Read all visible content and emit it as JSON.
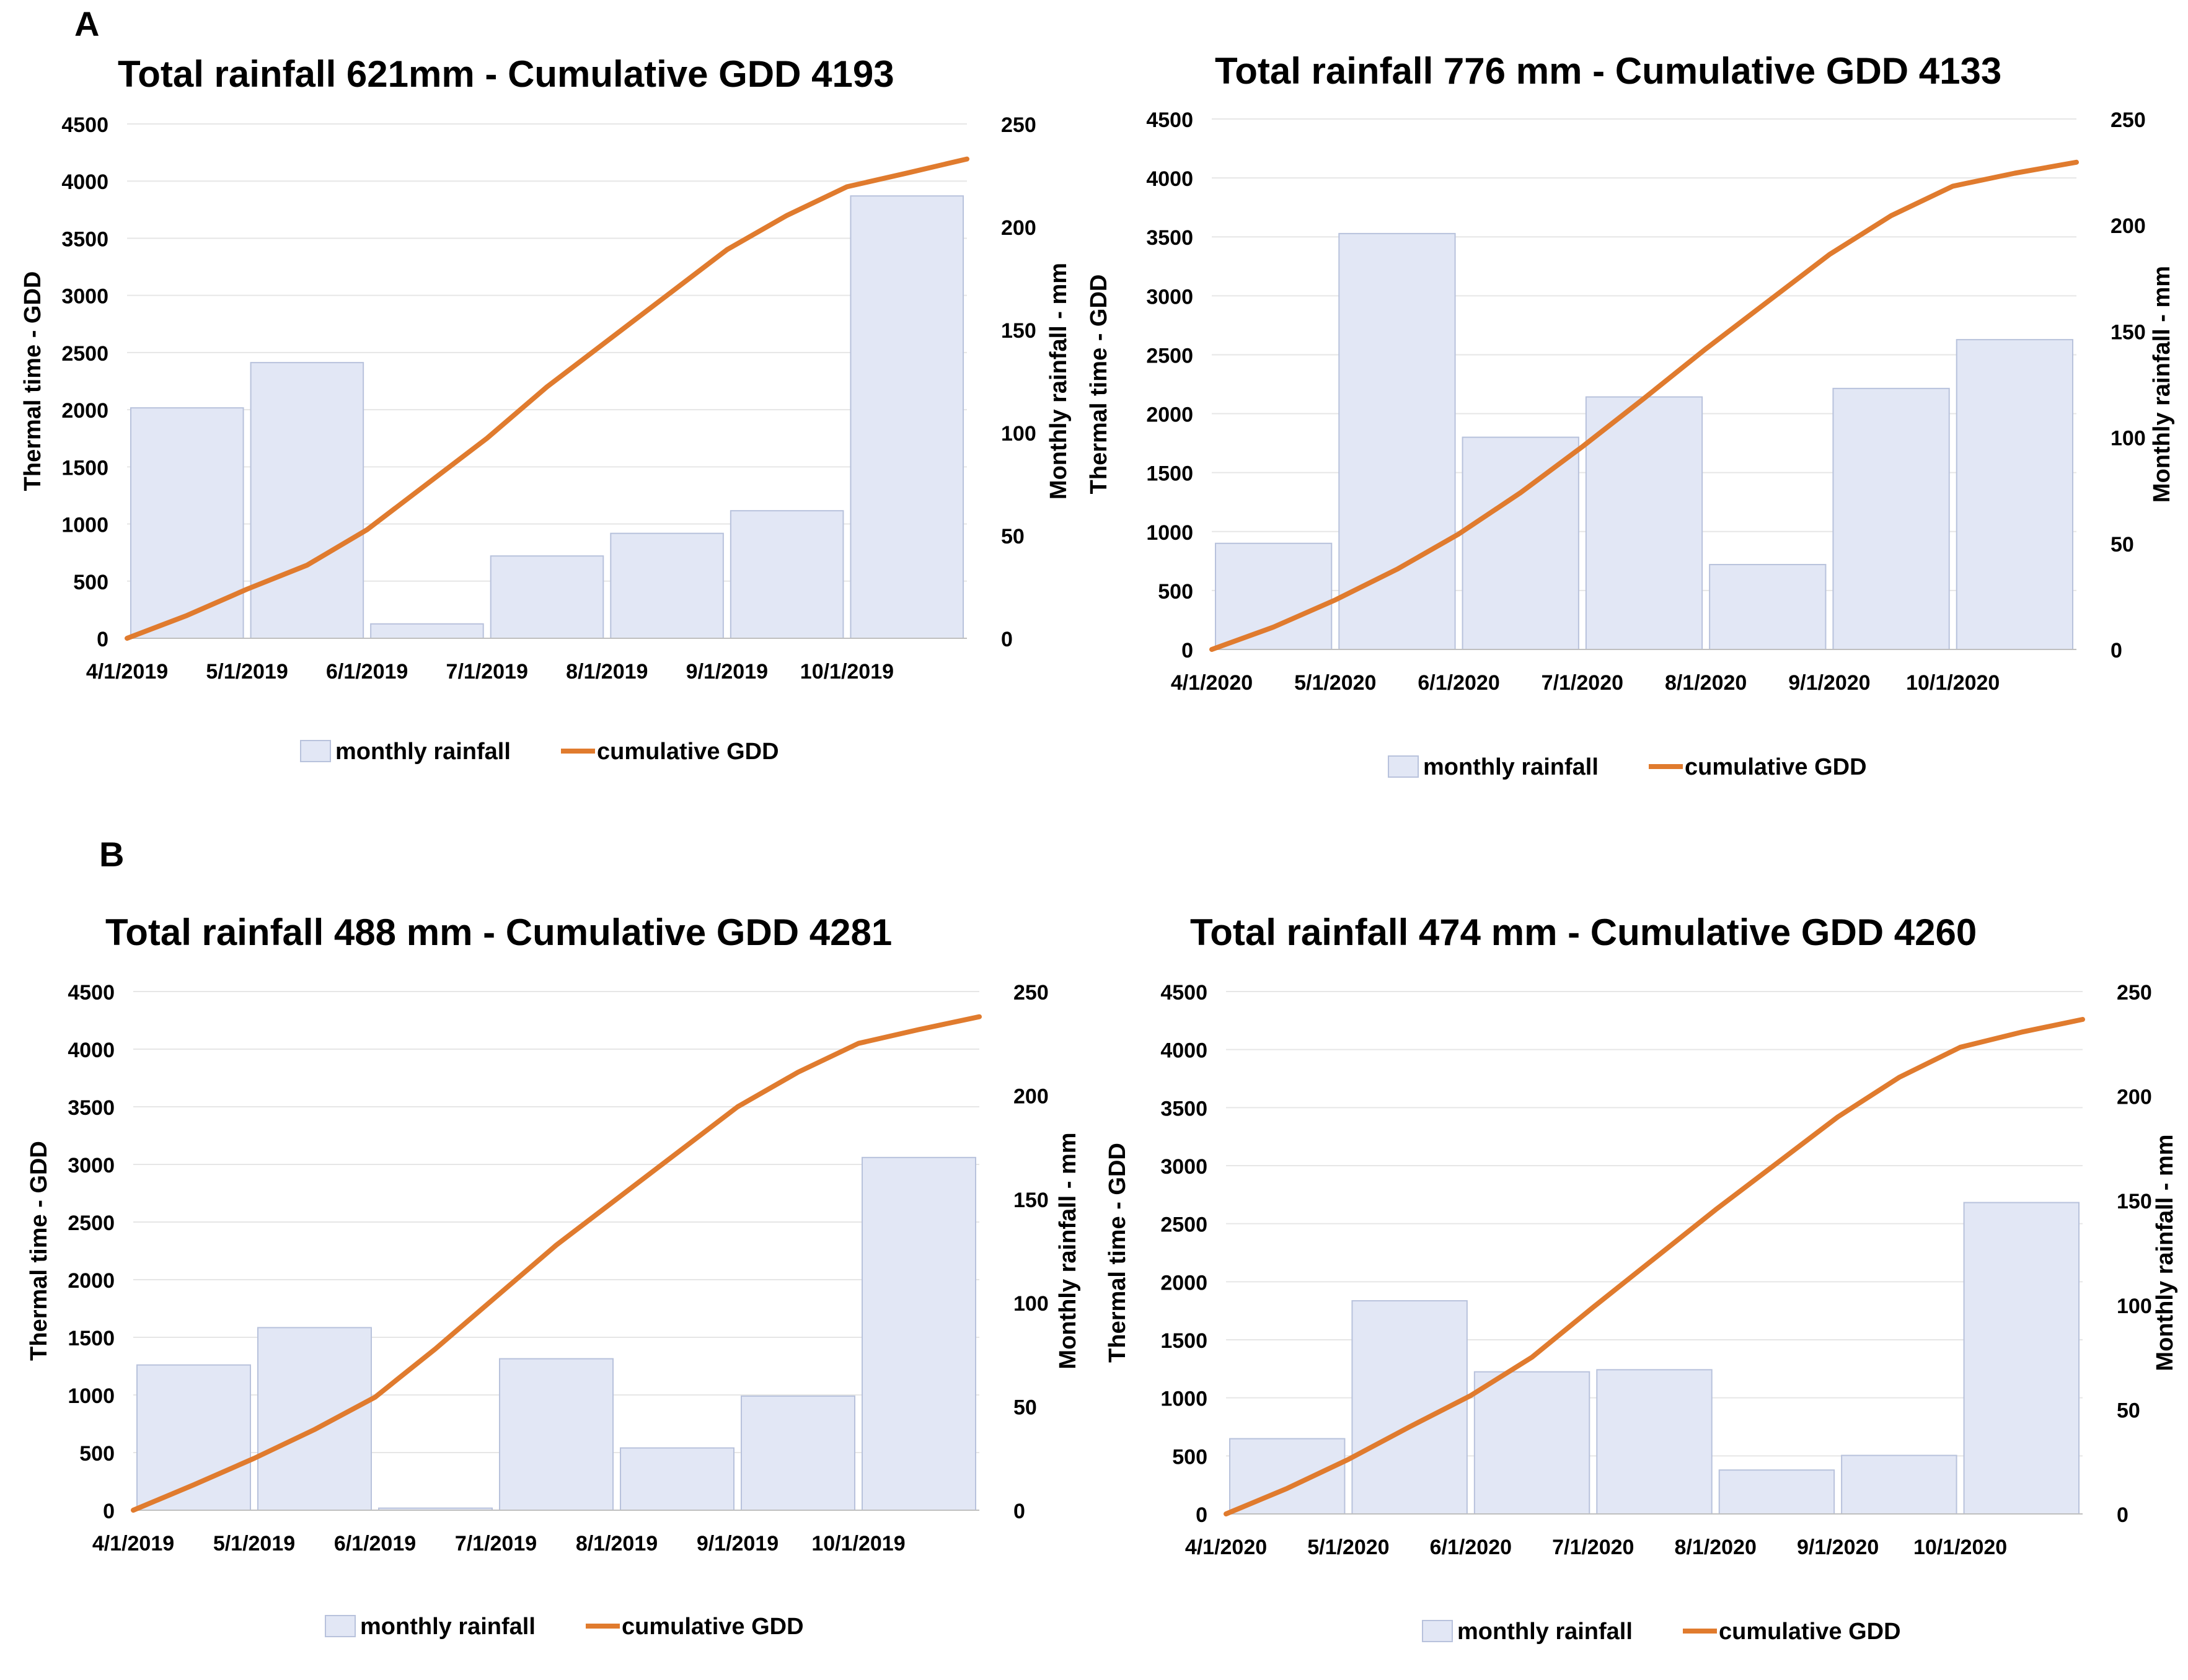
{
  "panels": [
    {
      "label": "A"
    },
    {
      "label": "B"
    }
  ],
  "legend": {
    "rainfall": "monthly rainfall",
    "gdd": "cumulative GDD"
  },
  "colors": {
    "bar_fill": "#e2e7f5",
    "bar_stroke": "#b8c2dc",
    "line": "#e07b2e",
    "text": "#000000",
    "grid": "#e6e6e6"
  },
  "chart_data": [
    {
      "type": "bar+line",
      "title": "Total rainfall 621mm - Cumulative GDD 4193",
      "ylabel": "Thermal time - GDD",
      "y2label": "Monthly rainfall - mm",
      "ylim": [
        0,
        4500
      ],
      "y2lim": [
        0,
        250
      ],
      "yticks": [
        "0",
        "500",
        "1000",
        "1500",
        "2000",
        "2500",
        "3000",
        "3500",
        "4000",
        "4500"
      ],
      "y2ticks": [
        "0",
        "50",
        "100",
        "150",
        "200",
        "250"
      ],
      "categories": [
        "4/1/2019",
        "5/1/2019",
        "6/1/2019",
        "7/1/2019",
        "8/1/2019",
        "9/1/2019",
        "10/1/2019"
      ],
      "series": [
        {
          "name": "monthly rainfall",
          "kind": "bar",
          "axis": "right",
          "values": [
            112,
            134,
            7,
            40,
            51,
            62,
            215
          ]
        },
        {
          "name": "cumulative GDD",
          "kind": "line",
          "axis": "left",
          "x": [
            0,
            0.5,
            1,
            1.5,
            2,
            2.5,
            3,
            3.5,
            4,
            4.5,
            5,
            5.5,
            6,
            6.5,
            7
          ],
          "values": [
            0,
            200,
            430,
            640,
            950,
            1350,
            1750,
            2200,
            2600,
            3000,
            3400,
            3700,
            3950,
            4070,
            4193
          ]
        }
      ]
    },
    {
      "type": "bar+line",
      "title": "Total rainfall 776 mm - Cumulative GDD 4133",
      "ylabel": "Thermal time - GDD",
      "y2label": "Monthly rainfall - mm",
      "ylim": [
        0,
        4500
      ],
      "y2lim": [
        0,
        250
      ],
      "yticks": [
        "0",
        "500",
        "1000",
        "1500",
        "2000",
        "2500",
        "3000",
        "3500",
        "4000",
        "4500"
      ],
      "y2ticks": [
        "0",
        "50",
        "100",
        "150",
        "200",
        "250"
      ],
      "categories": [
        "4/1/2020",
        "5/1/2020",
        "6/1/2020",
        "7/1/2020",
        "8/1/2020",
        "9/1/2020",
        "10/1/2020"
      ],
      "series": [
        {
          "name": "monthly rainfall",
          "kind": "bar",
          "axis": "right",
          "values": [
            50,
            196,
            100,
            119,
            40,
            123,
            146
          ]
        },
        {
          "name": "cumulative GDD",
          "kind": "line",
          "axis": "left",
          "x": [
            0,
            0.5,
            1,
            1.5,
            2,
            2.5,
            3,
            3.5,
            4,
            4.5,
            5,
            5.5,
            6,
            6.5,
            7
          ],
          "values": [
            0,
            190,
            420,
            680,
            980,
            1330,
            1720,
            2130,
            2550,
            2950,
            3350,
            3680,
            3930,
            4040,
            4133
          ]
        }
      ]
    },
    {
      "type": "bar+line",
      "title": "Total rainfall 488 mm - Cumulative GDD 4281",
      "ylabel": "Thermal time - GDD",
      "y2label": "Monthly rainfall - mm",
      "ylim": [
        0,
        4500
      ],
      "y2lim": [
        0,
        250
      ],
      "yticks": [
        "0",
        "500",
        "1000",
        "1500",
        "2000",
        "2500",
        "3000",
        "3500",
        "4000",
        "4500"
      ],
      "y2ticks": [
        "0",
        "50",
        "100",
        "150",
        "200",
        "250"
      ],
      "categories": [
        "4/1/2019",
        "5/1/2019",
        "6/1/2019",
        "7/1/2019",
        "8/1/2019",
        "9/1/2019",
        "10/1/2019"
      ],
      "series": [
        {
          "name": "monthly rainfall",
          "kind": "bar",
          "axis": "right",
          "values": [
            70,
            88,
            1,
            73,
            30,
            55,
            170
          ]
        },
        {
          "name": "cumulative GDD",
          "kind": "line",
          "axis": "left",
          "x": [
            0,
            0.5,
            1,
            1.5,
            2,
            2.5,
            3,
            3.5,
            4,
            4.5,
            5,
            5.5,
            6,
            6.5,
            7
          ],
          "values": [
            0,
            220,
            450,
            700,
            980,
            1400,
            1850,
            2300,
            2700,
            3100,
            3500,
            3800,
            4050,
            4170,
            4281
          ]
        }
      ]
    },
    {
      "type": "bar+line",
      "title": "Total rainfall 474 mm - Cumulative GDD 4260",
      "ylabel": "Thermal time - GDD",
      "y2label": "Monthly rainfall - mm",
      "ylim": [
        0,
        4500
      ],
      "y2lim": [
        0,
        250
      ],
      "yticks": [
        "0",
        "500",
        "1000",
        "1500",
        "2000",
        "2500",
        "3000",
        "3500",
        "4000",
        "4500"
      ],
      "y2ticks": [
        "0",
        "50",
        "100",
        "150",
        "200",
        "250"
      ],
      "categories": [
        "4/1/2020",
        "5/1/2020",
        "6/1/2020",
        "7/1/2020",
        "8/1/2020",
        "9/1/2020",
        "10/1/2020"
      ],
      "series": [
        {
          "name": "monthly rainfall",
          "kind": "bar",
          "axis": "right",
          "values": [
            36,
            102,
            68,
            69,
            21,
            28,
            149
          ]
        },
        {
          "name": "cumulative GDD",
          "kind": "line",
          "axis": "left",
          "x": [
            0,
            0.5,
            1,
            1.5,
            2,
            2.5,
            3,
            3.5,
            4,
            4.5,
            5,
            5.5,
            6,
            6.5,
            7
          ],
          "values": [
            0,
            220,
            470,
            750,
            1020,
            1350,
            1780,
            2200,
            2620,
            3020,
            3420,
            3760,
            4020,
            4150,
            4260
          ]
        }
      ]
    }
  ]
}
